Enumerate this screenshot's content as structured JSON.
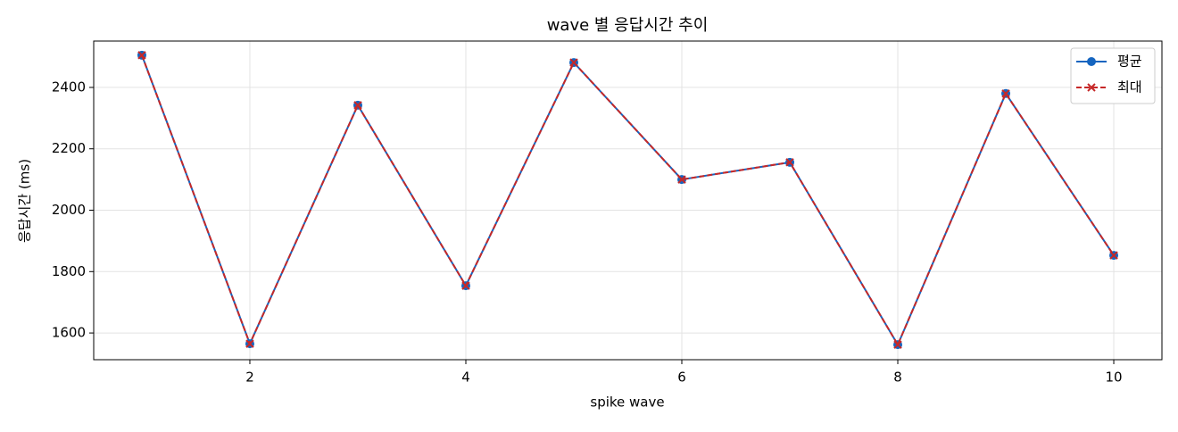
{
  "chart_data": {
    "type": "line",
    "title": "wave 별 응답시간 추이",
    "xlabel": "spike wave",
    "ylabel": "응답시간 (ms)",
    "x": [
      1,
      2,
      3,
      4,
      5,
      6,
      7,
      8,
      9,
      10
    ],
    "series": [
      {
        "name": "평균",
        "color": "#1565c0",
        "marker": "o",
        "linestyle": "solid",
        "values": [
          2505,
          1565,
          2342,
          1754,
          2481,
          2100,
          2156,
          1562,
          2380,
          1853
        ]
      },
      {
        "name": "최대",
        "color": "#c62828",
        "marker": "x",
        "linestyle": "dashed",
        "values": [
          2505,
          1565,
          2342,
          1754,
          2481,
          2100,
          2156,
          1562,
          2380,
          1853
        ]
      }
    ],
    "xlim": [
      0.554,
      10.446
    ],
    "xticks": [
      2,
      4,
      6,
      8,
      10
    ],
    "ylim": [
      1513,
      2551
    ],
    "yticks": [
      1600,
      1800,
      2000,
      2200,
      2400
    ],
    "grid": true,
    "legend": "upper right"
  }
}
